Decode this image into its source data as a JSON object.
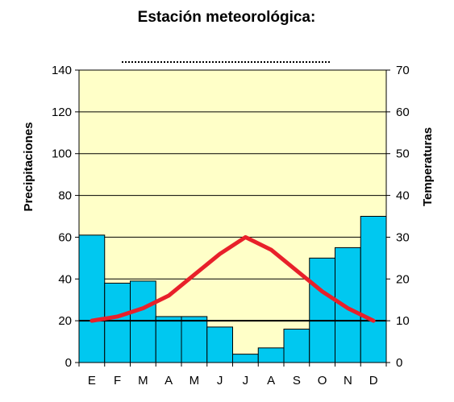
{
  "chart_data": {
    "type": "bar",
    "title": "Estación meteorológica:",
    "subtitle": "",
    "categories": [
      "E",
      "F",
      "M",
      "A",
      "M",
      "J",
      "J",
      "A",
      "S",
      "O",
      "N",
      "D"
    ],
    "series": [
      {
        "name": "Precipitaciones",
        "type": "bar",
        "axis": "left",
        "values": [
          61,
          38,
          39,
          22,
          22,
          17,
          4,
          7,
          16,
          50,
          55,
          70
        ]
      },
      {
        "name": "Temperaturas",
        "type": "line",
        "axis": "right",
        "values": [
          10,
          11,
          13,
          16,
          21,
          26,
          30,
          27,
          22,
          17,
          13,
          10
        ]
      }
    ],
    "ylabel": "Precipitaciones",
    "ylabel_right": "Temperaturas",
    "ylim": [
      0,
      140
    ],
    "ylim_right": [
      0,
      70
    ],
    "yticks": [
      "0",
      "20",
      "40",
      "60",
      "80",
      "100",
      "120",
      "140"
    ],
    "yticks_right": [
      "0",
      "10",
      "20",
      "30",
      "40",
      "50",
      "60",
      "70"
    ],
    "grid": true,
    "legend": "none",
    "colors": {
      "plot_background": "#ffffc8",
      "bar_fill": "#00c8f0",
      "bar_stroke": "#000000",
      "line": "#e8202a",
      "grid": "#000000",
      "month_highlight": "#800080"
    },
    "highlighted_month_indices": [
      4,
      10
    ]
  }
}
